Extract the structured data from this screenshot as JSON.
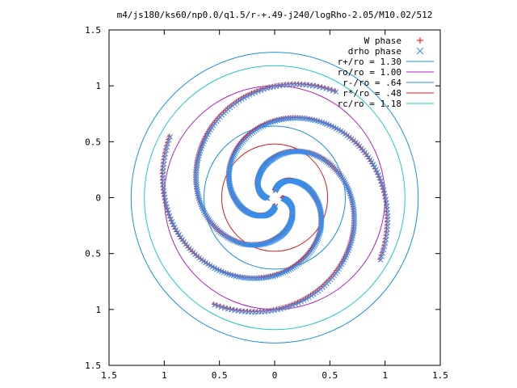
{
  "chart_data": {
    "type": "scatter",
    "title": "m4/js180/ks60/np0.0/q1.5/r-+.49-j240/logRho-2.05/M10.02/512",
    "xlabel": "",
    "ylabel": "",
    "xlim": [
      -1.5,
      1.5
    ],
    "ylim": [
      -1.5,
      1.5
    ],
    "x_tick_labels": [
      "1.5",
      "1",
      "0.5",
      "0",
      "0.5",
      "1",
      "1.5"
    ],
    "y_tick_labels": [
      "1.5",
      "1",
      "0.5",
      "0",
      "0.5",
      "1",
      "1.5"
    ],
    "grid": false,
    "legend_position": "top-right",
    "series": [
      {
        "name": "W phase",
        "kind": "points",
        "marker": "+",
        "color": "#ff0000",
        "arms": 4,
        "rotation_deg": 90,
        "spiral": [
          {
            "r": 0.07,
            "theta_deg": 90
          },
          {
            "r": 0.17,
            "theta_deg": 62
          },
          {
            "r": 0.25,
            "theta_deg": 35
          },
          {
            "r": 0.36,
            "theta_deg": 2
          },
          {
            "r": 0.5,
            "theta_deg": -35
          },
          {
            "r": 0.65,
            "theta_deg": -78
          },
          {
            "r": 0.8,
            "theta_deg": -122
          },
          {
            "r": 0.95,
            "theta_deg": -165
          },
          {
            "r": 1.1,
            "theta_deg": -210
          }
        ]
      },
      {
        "name": "drho phase",
        "kind": "points",
        "marker": "x",
        "color": "#3a8ee8",
        "arms": 4,
        "rotation_deg": 90,
        "spiral": [
          {
            "r": 0.07,
            "theta_deg": 90
          },
          {
            "r": 0.17,
            "theta_deg": 62
          },
          {
            "r": 0.25,
            "theta_deg": 35
          },
          {
            "r": 0.36,
            "theta_deg": 2
          },
          {
            "r": 0.5,
            "theta_deg": -35
          },
          {
            "r": 0.65,
            "theta_deg": -78
          },
          {
            "r": 0.8,
            "theta_deg": -122
          },
          {
            "r": 0.95,
            "theta_deg": -165
          },
          {
            "r": 1.1,
            "theta_deg": -210
          }
        ]
      },
      {
        "name": "r+/ro = 1.30",
        "kind": "circle",
        "radius": 1.3,
        "color": "#1a8fdc"
      },
      {
        "name": "ro/ro = 1.00",
        "kind": "circle",
        "radius": 1.0,
        "color": "#b020c8"
      },
      {
        "name": "r-/ro = .64",
        "kind": "circle",
        "radius": 0.64,
        "color": "#1a8fdc"
      },
      {
        "name": "r*/ro = .48",
        "kind": "circle",
        "radius": 0.48,
        "color": "#d02020"
      },
      {
        "name": "rc/ro = 1.18",
        "kind": "circle",
        "radius": 1.18,
        "color": "#20c8c8"
      }
    ]
  }
}
